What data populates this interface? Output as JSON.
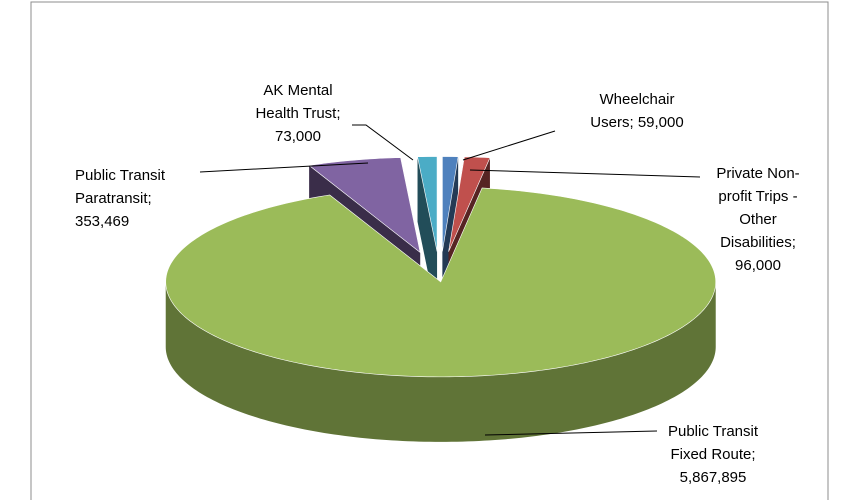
{
  "chart_data": {
    "type": "pie",
    "categories": [
      "Wheelchair Users",
      "Private Non-profit Trips - Other Disabilities",
      "Public Transit Fixed Route",
      "Public Transit Paratransit",
      "AK Mental Health Trust"
    ],
    "values": [
      59000,
      96000,
      5867895,
      353469,
      73000
    ],
    "value_labels": [
      "59,000",
      "96,000",
      "5,867,895",
      "353,469",
      "73,000"
    ],
    "label_separator": ";",
    "colors": [
      "#4f81bd",
      "#c0504d",
      "#9bbb59",
      "#8064a2",
      "#4bacc6"
    ]
  }
}
